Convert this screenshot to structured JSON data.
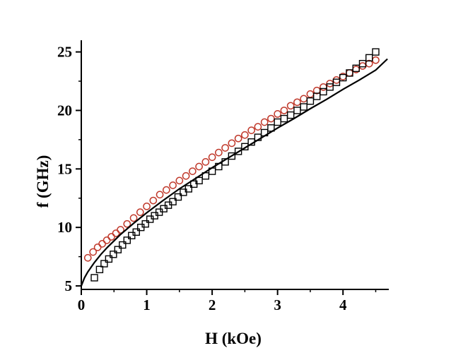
{
  "chart_data": {
    "type": "scatter",
    "xlabel": "H (kOe)",
    "ylabel": "f (GHz)",
    "xlim": [
      0,
      4.7
    ],
    "ylim": [
      4.7,
      26
    ],
    "xticks": [
      0,
      1,
      2,
      3,
      4
    ],
    "yticks": [
      5,
      10,
      15,
      20,
      25
    ],
    "x_tick_labels": [
      "0",
      "1",
      "2",
      "3",
      "4"
    ],
    "y_tick_labels": [
      "5",
      "10",
      "15",
      "20",
      "25"
    ],
    "grid": false,
    "legend": "none",
    "series": [
      {
        "marker": "circle",
        "color": "#c0392b",
        "x": [
          0.1,
          0.18,
          0.25,
          0.32,
          0.39,
          0.46,
          0.53,
          0.6,
          0.7,
          0.8,
          0.9,
          1.0,
          1.1,
          1.2,
          1.3,
          1.4,
          1.5,
          1.6,
          1.7,
          1.8,
          1.9,
          2.0,
          2.1,
          2.2,
          2.3,
          2.4,
          2.5,
          2.6,
          2.7,
          2.8,
          2.9,
          3.0,
          3.1,
          3.2,
          3.3,
          3.4,
          3.5,
          3.6,
          3.7,
          3.8,
          3.9,
          4.0,
          4.1,
          4.2,
          4.3,
          4.4,
          4.5
        ],
        "y": [
          7.4,
          7.9,
          8.3,
          8.6,
          8.9,
          9.2,
          9.5,
          9.8,
          10.3,
          10.8,
          11.3,
          11.8,
          12.3,
          12.8,
          13.2,
          13.6,
          14.0,
          14.4,
          14.8,
          15.2,
          15.6,
          16.0,
          16.4,
          16.8,
          17.2,
          17.6,
          17.9,
          18.3,
          18.6,
          19.0,
          19.3,
          19.7,
          20.0,
          20.4,
          20.7,
          21.0,
          21.4,
          21.7,
          22.0,
          22.3,
          22.6,
          22.9,
          23.2,
          23.5,
          23.8,
          24.0,
          24.3
        ]
      },
      {
        "marker": "square",
        "color": "#000000",
        "x": [
          0.2,
          0.28,
          0.35,
          0.42,
          0.49,
          0.56,
          0.63,
          0.7,
          0.77,
          0.84,
          0.91,
          0.98,
          1.05,
          1.12,
          1.19,
          1.26,
          1.33,
          1.4,
          1.48,
          1.56,
          1.64,
          1.72,
          1.8,
          1.9,
          2.0,
          2.1,
          2.2,
          2.3,
          2.4,
          2.5,
          2.6,
          2.7,
          2.8,
          2.9,
          3.0,
          3.1,
          3.2,
          3.3,
          3.4,
          3.5,
          3.6,
          3.7,
          3.8,
          3.9,
          4.0,
          4.1,
          4.2,
          4.3,
          4.4,
          4.5
        ],
        "y": [
          5.7,
          6.4,
          6.9,
          7.3,
          7.7,
          8.1,
          8.5,
          8.9,
          9.3,
          9.6,
          10.0,
          10.3,
          10.7,
          11.0,
          11.3,
          11.6,
          11.9,
          12.2,
          12.6,
          13.0,
          13.3,
          13.7,
          14.0,
          14.4,
          14.8,
          15.2,
          15.6,
          16.1,
          16.5,
          16.9,
          17.3,
          17.7,
          18.1,
          18.5,
          19.0,
          19.3,
          19.6,
          20.0,
          20.3,
          20.8,
          21.2,
          21.6,
          22.0,
          22.4,
          22.8,
          23.2,
          23.6,
          24.0,
          24.5,
          25.0
        ]
      },
      {
        "marker": "none",
        "style": "line",
        "color": "#000000",
        "x": [
          0.0,
          0.05,
          0.1,
          0.2,
          0.3,
          0.4,
          0.5,
          0.6,
          0.8,
          1.0,
          1.25,
          1.5,
          1.75,
          2.0,
          2.25,
          2.5,
          2.75,
          3.0,
          3.25,
          3.5,
          3.75,
          4.0,
          4.25,
          4.5,
          4.68
        ],
        "y": [
          5.0,
          5.7,
          6.2,
          7.0,
          7.7,
          8.3,
          8.85,
          9.4,
          10.35,
          11.25,
          12.3,
          13.3,
          14.2,
          15.1,
          15.95,
          16.8,
          17.65,
          18.5,
          19.3,
          20.15,
          20.95,
          21.8,
          22.6,
          23.45,
          24.4
        ]
      }
    ]
  }
}
